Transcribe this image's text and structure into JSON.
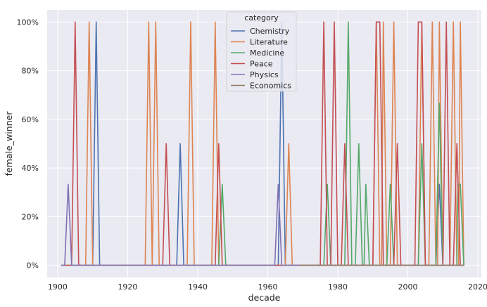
{
  "chart_data": {
    "type": "line",
    "xlabel": "decade",
    "ylabel": "female_winner",
    "xlim": [
      1897,
      2021
    ],
    "ylim": [
      -0.05,
      1.05
    ],
    "x_ticks": [
      1900,
      1920,
      1940,
      1960,
      1980,
      2000,
      2020
    ],
    "y_ticks": [
      0,
      0.2,
      0.4,
      0.6,
      0.8,
      1.0
    ],
    "y_tick_labels": [
      "0%",
      "20%",
      "40%",
      "60%",
      "80%",
      "100%"
    ],
    "grid": true,
    "legend": {
      "title": "category",
      "placement": "top-center",
      "entries": [
        "Chemistry",
        "Literature",
        "Medicine",
        "Peace",
        "Physics",
        "Economics"
      ]
    },
    "series": [
      {
        "name": "Chemistry",
        "color": "#4c72b0",
        "points": [
          [
            1901,
            0
          ],
          [
            1910,
            0
          ],
          [
            1911,
            1
          ],
          [
            1912,
            0
          ],
          [
            1934,
            0
          ],
          [
            1935,
            0.5
          ],
          [
            1936,
            0
          ],
          [
            1963,
            0
          ],
          [
            1964,
            1
          ],
          [
            1965,
            0
          ],
          [
            2008,
            0
          ],
          [
            2009,
            0.333
          ],
          [
            2010,
            0
          ],
          [
            2016,
            0
          ]
        ]
      },
      {
        "name": "Literature",
        "color": "#dd8452",
        "points": [
          [
            1901,
            0
          ],
          [
            1908,
            0
          ],
          [
            1909,
            1
          ],
          [
            1910,
            0
          ],
          [
            1925,
            0
          ],
          [
            1926,
            1
          ],
          [
            1927,
            0
          ],
          [
            1928,
            1
          ],
          [
            1929,
            0
          ],
          [
            1937,
            0
          ],
          [
            1938,
            1
          ],
          [
            1939,
            0
          ],
          [
            1944,
            0
          ],
          [
            1945,
            1
          ],
          [
            1946,
            0
          ],
          [
            1965,
            0
          ],
          [
            1966,
            0.5
          ],
          [
            1967,
            0
          ],
          [
            1990,
            0
          ],
          [
            1991,
            1
          ],
          [
            1992,
            0
          ],
          [
            1992.5,
            0
          ],
          [
            1993,
            1
          ],
          [
            1994,
            0
          ],
          [
            1995,
            0
          ],
          [
            1996,
            1
          ],
          [
            1997,
            0
          ],
          [
            2003,
            0
          ],
          [
            2004,
            1
          ],
          [
            2005,
            0
          ],
          [
            2006,
            0
          ],
          [
            2007,
            1
          ],
          [
            2008,
            0
          ],
          [
            2008.5,
            0
          ],
          [
            2009,
            1
          ],
          [
            2010,
            0
          ],
          [
            2012,
            0
          ],
          [
            2013,
            1
          ],
          [
            2014,
            0
          ],
          [
            2014.5,
            0
          ],
          [
            2015,
            1
          ],
          [
            2016,
            0
          ]
        ]
      },
      {
        "name": "Medicine",
        "color": "#55a868",
        "points": [
          [
            1901,
            0
          ],
          [
            1946,
            0
          ],
          [
            1947,
            0.333
          ],
          [
            1948,
            0
          ],
          [
            1976,
            0
          ],
          [
            1977,
            0.333
          ],
          [
            1978,
            0
          ],
          [
            1982,
            0
          ],
          [
            1983,
            1
          ],
          [
            1984,
            0
          ],
          [
            1985,
            0
          ],
          [
            1986,
            0.5
          ],
          [
            1987,
            0
          ],
          [
            1987.5,
            0
          ],
          [
            1988,
            0.333
          ],
          [
            1989,
            0
          ],
          [
            1994,
            0
          ],
          [
            1995,
            0.333
          ],
          [
            1996,
            0
          ],
          [
            2003,
            0
          ],
          [
            2004,
            0.5
          ],
          [
            2005,
            0
          ],
          [
            2008,
            0
          ],
          [
            2009,
            0.667
          ],
          [
            2010,
            0
          ],
          [
            2014,
            0
          ],
          [
            2014.3,
            0.333
          ],
          [
            2015,
            0.333
          ],
          [
            2016,
            0
          ]
        ]
      },
      {
        "name": "Peace",
        "color": "#c44e52",
        "points": [
          [
            1901,
            0
          ],
          [
            1904,
            0
          ],
          [
            1905,
            1
          ],
          [
            1906,
            0
          ],
          [
            1930,
            0
          ],
          [
            1931,
            0.5
          ],
          [
            1932,
            0
          ],
          [
            1945,
            0
          ],
          [
            1946,
            0.5
          ],
          [
            1947,
            0
          ],
          [
            1975,
            0
          ],
          [
            1976,
            1
          ],
          [
            1977,
            0
          ],
          [
            1978,
            0
          ],
          [
            1979,
            1
          ],
          [
            1980,
            0
          ],
          [
            1981,
            0
          ],
          [
            1982,
            0.5
          ],
          [
            1983,
            0
          ],
          [
            1990,
            0
          ],
          [
            1991,
            1
          ],
          [
            1992,
            1
          ],
          [
            1993,
            0
          ],
          [
            1996,
            0
          ],
          [
            1997,
            0.5
          ],
          [
            1998,
            0
          ],
          [
            2002,
            0
          ],
          [
            2003,
            1
          ],
          [
            2004,
            1
          ],
          [
            2005,
            0
          ],
          [
            2010,
            0
          ],
          [
            2011,
            1
          ],
          [
            2012,
            0
          ],
          [
            2013,
            0
          ],
          [
            2014,
            0.5
          ],
          [
            2015,
            0
          ],
          [
            2016,
            0
          ]
        ]
      },
      {
        "name": "Physics",
        "color": "#8172b3",
        "points": [
          [
            1901,
            0
          ],
          [
            1902,
            0
          ],
          [
            1903,
            0.333
          ],
          [
            1904,
            0
          ],
          [
            1962,
            0
          ],
          [
            1963,
            0.333
          ],
          [
            1964,
            0
          ],
          [
            2016,
            0
          ]
        ]
      },
      {
        "name": "Economics",
        "color": "#937860",
        "points": [
          [
            1969,
            0
          ],
          [
            2016,
            0
          ]
        ]
      }
    ]
  }
}
